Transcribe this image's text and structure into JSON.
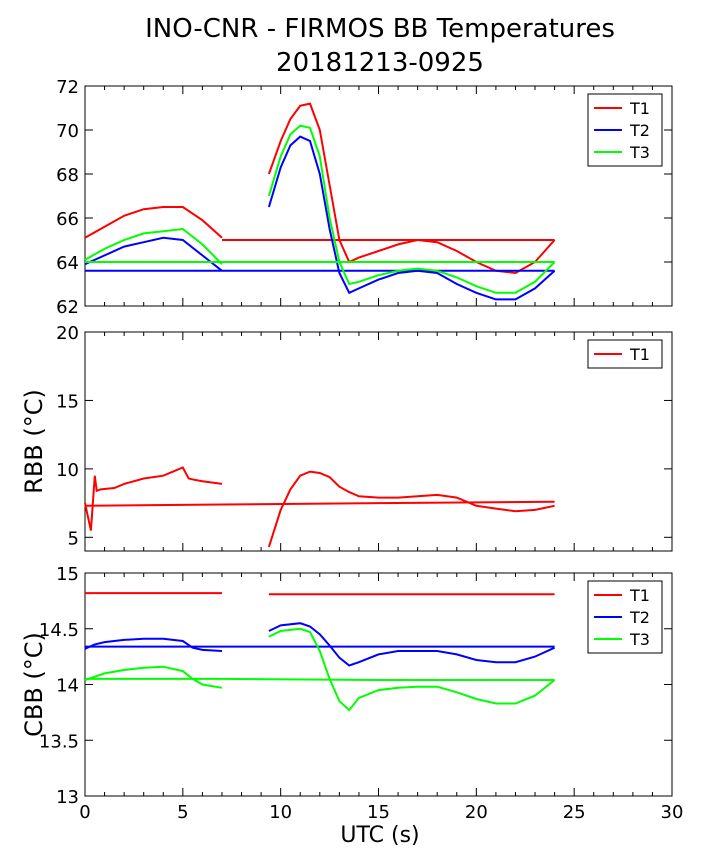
{
  "figure": {
    "title_line1": "INO-CNR - FIRMOS BB Temperatures",
    "title_line2": "20181213-0925",
    "xlabel": "UTC (s)"
  },
  "chart_data": [
    {
      "type": "line",
      "title": "",
      "xlabel": "",
      "ylabel": "",
      "xlim": [
        0,
        30
      ],
      "ylim": [
        62,
        72
      ],
      "xticks": [
        0,
        5,
        10,
        15,
        20,
        25,
        30
      ],
      "yticks": [
        "62",
        "64",
        "66",
        "68",
        "70",
        "72"
      ],
      "legend_position": "top-right",
      "series": [
        {
          "name": "T1",
          "color": "#ff0000",
          "segments": [
            {
              "x": [
                0,
                1,
                2,
                3,
                4,
                5,
                6,
                7
              ],
              "y": [
                65.1,
                65.6,
                66.1,
                66.4,
                66.5,
                66.5,
                65.9,
                65.1
              ]
            },
            {
              "x": [
                7,
                15,
                20,
                24
              ],
              "y": [
                65.0,
                65.0,
                65.0,
                65.0
              ]
            },
            {
              "x": [
                9.4,
                10,
                10.5,
                11,
                11.5,
                12,
                12.5,
                13,
                13.5,
                14,
                15,
                16,
                17,
                18,
                19,
                20,
                21,
                22,
                23,
                24
              ],
              "y": [
                68.0,
                69.5,
                70.5,
                71.1,
                71.2,
                70.0,
                67.5,
                65.0,
                64.0,
                64.2,
                64.5,
                64.8,
                65.0,
                64.9,
                64.5,
                64.0,
                63.6,
                63.5,
                64.0,
                65.0
              ]
            }
          ]
        },
        {
          "name": "T2",
          "color": "#0000ff",
          "segments": [
            {
              "x": [
                0,
                1,
                2,
                3,
                4,
                5,
                6,
                7
              ],
              "y": [
                63.9,
                64.3,
                64.7,
                64.9,
                65.1,
                65.0,
                64.3,
                63.6
              ]
            },
            {
              "x": [
                0,
                7,
                15,
                24
              ],
              "y": [
                63.6,
                63.6,
                63.6,
                63.6
              ]
            },
            {
              "x": [
                9.4,
                10,
                10.5,
                11,
                11.5,
                12,
                12.5,
                13,
                13.5,
                14,
                15,
                16,
                17,
                18,
                19,
                20,
                21,
                22,
                23,
                24
              ],
              "y": [
                66.5,
                68.3,
                69.3,
                69.7,
                69.5,
                68.0,
                65.5,
                63.5,
                62.6,
                62.8,
                63.2,
                63.5,
                63.6,
                63.5,
                63.0,
                62.6,
                62.3,
                62.3,
                62.8,
                63.6
              ]
            }
          ]
        },
        {
          "name": "T3",
          "color": "#00ff00",
          "segments": [
            {
              "x": [
                0,
                1,
                2,
                3,
                4,
                5,
                6,
                7
              ],
              "y": [
                64.1,
                64.6,
                65.0,
                65.3,
                65.4,
                65.5,
                64.8,
                63.9
              ]
            },
            {
              "x": [
                0,
                7,
                15,
                24
              ],
              "y": [
                64.0,
                64.0,
                64.0,
                64.0
              ]
            },
            {
              "x": [
                9.4,
                10,
                10.5,
                11,
                11.5,
                12,
                12.5,
                13,
                13.5,
                14,
                15,
                16,
                17,
                18,
                19,
                20,
                21,
                22,
                23,
                24
              ],
              "y": [
                67.0,
                68.8,
                69.8,
                70.2,
                70.1,
                68.8,
                66.0,
                64.0,
                63.0,
                63.1,
                63.4,
                63.6,
                63.7,
                63.6,
                63.3,
                62.9,
                62.6,
                62.6,
                63.1,
                64.0
              ]
            }
          ]
        }
      ]
    },
    {
      "type": "line",
      "title": "",
      "xlabel": "",
      "ylabel": "RBB (°C)",
      "xlim": [
        0,
        30
      ],
      "ylim": [
        4,
        20
      ],
      "xticks": [
        0,
        5,
        10,
        15,
        20,
        25,
        30
      ],
      "yticks": [
        "5",
        "10",
        "15",
        "20"
      ],
      "legend_position": "top-right",
      "series": [
        {
          "name": "T1",
          "color": "#ff0000",
          "segments": [
            {
              "x": [
                0,
                0.3,
                0.5,
                0.6,
                0.8,
                1.5,
                2,
                3,
                4,
                4.5,
                5,
                5.3,
                5.6,
                6,
                7
              ],
              "y": [
                7.5,
                5.5,
                9.5,
                8.4,
                8.5,
                8.6,
                8.9,
                9.3,
                9.5,
                9.8,
                10.1,
                9.3,
                9.2,
                9.1,
                8.9
              ]
            },
            {
              "x": [
                0,
                7,
                15,
                24
              ],
              "y": [
                7.3,
                7.4,
                7.5,
                7.6
              ]
            },
            {
              "x": [
                9.4,
                10,
                10.5,
                11,
                11.5,
                12,
                12.5,
                13,
                13.5,
                14,
                15,
                16,
                17,
                18,
                19,
                20,
                21,
                22,
                23,
                24
              ],
              "y": [
                4.3,
                7.0,
                8.5,
                9.5,
                9.8,
                9.7,
                9.4,
                8.7,
                8.3,
                8.0,
                7.9,
                7.9,
                8.0,
                8.1,
                7.9,
                7.3,
                7.1,
                6.9,
                7.0,
                7.3
              ]
            }
          ]
        }
      ]
    },
    {
      "type": "line",
      "title": "",
      "xlabel": "",
      "ylabel": "CBB (°C)",
      "xlim": [
        0,
        30
      ],
      "ylim": [
        13,
        15
      ],
      "xticks": [
        "0",
        "5",
        "10",
        "15",
        "20",
        "25",
        "30"
      ],
      "yticks": [
        "13",
        "13.5",
        "14",
        "14.5",
        "15"
      ],
      "legend_position": "top-right",
      "series": [
        {
          "name": "T1",
          "color": "#ff0000",
          "segments": [
            {
              "x": [
                0,
                7
              ],
              "y": [
                14.82,
                14.82
              ]
            },
            {
              "x": [
                9.4,
                24
              ],
              "y": [
                14.81,
                14.81
              ]
            }
          ]
        },
        {
          "name": "T2",
          "color": "#0000ff",
          "segments": [
            {
              "x": [
                0,
                0.5,
                1,
                2,
                3,
                4,
                5,
                5.5,
                6,
                7
              ],
              "y": [
                14.32,
                14.36,
                14.38,
                14.4,
                14.41,
                14.41,
                14.39,
                14.33,
                14.31,
                14.3
              ]
            },
            {
              "x": [
                0,
                7,
                15,
                24
              ],
              "y": [
                14.34,
                14.34,
                14.34,
                14.34
              ]
            },
            {
              "x": [
                9.4,
                10,
                11,
                11.5,
                12,
                12.5,
                13,
                13.5,
                14,
                15,
                16,
                17,
                18,
                19,
                20,
                21,
                22,
                23,
                24
              ],
              "y": [
                14.48,
                14.53,
                14.55,
                14.52,
                14.45,
                14.35,
                14.24,
                14.17,
                14.2,
                14.27,
                14.3,
                14.3,
                14.3,
                14.27,
                14.22,
                14.2,
                14.2,
                14.25,
                14.33
              ]
            }
          ]
        },
        {
          "name": "T3",
          "color": "#00ff00",
          "segments": [
            {
              "x": [
                0,
                0.5,
                1,
                2,
                3,
                4,
                5,
                5.5,
                6,
                7
              ],
              "y": [
                14.04,
                14.07,
                14.1,
                14.13,
                14.15,
                14.16,
                14.12,
                14.05,
                14.0,
                13.97
              ]
            },
            {
              "x": [
                0,
                7,
                15,
                24
              ],
              "y": [
                14.05,
                14.05,
                14.04,
                14.04
              ]
            },
            {
              "x": [
                9.4,
                10,
                11,
                11.5,
                12,
                12.5,
                13,
                13.5,
                14,
                15,
                16,
                17,
                18,
                19,
                20,
                21,
                22,
                23,
                24
              ],
              "y": [
                14.43,
                14.48,
                14.5,
                14.47,
                14.3,
                14.05,
                13.85,
                13.77,
                13.88,
                13.95,
                13.97,
                13.98,
                13.98,
                13.93,
                13.87,
                13.83,
                13.83,
                13.9,
                14.04
              ]
            }
          ]
        }
      ]
    }
  ]
}
